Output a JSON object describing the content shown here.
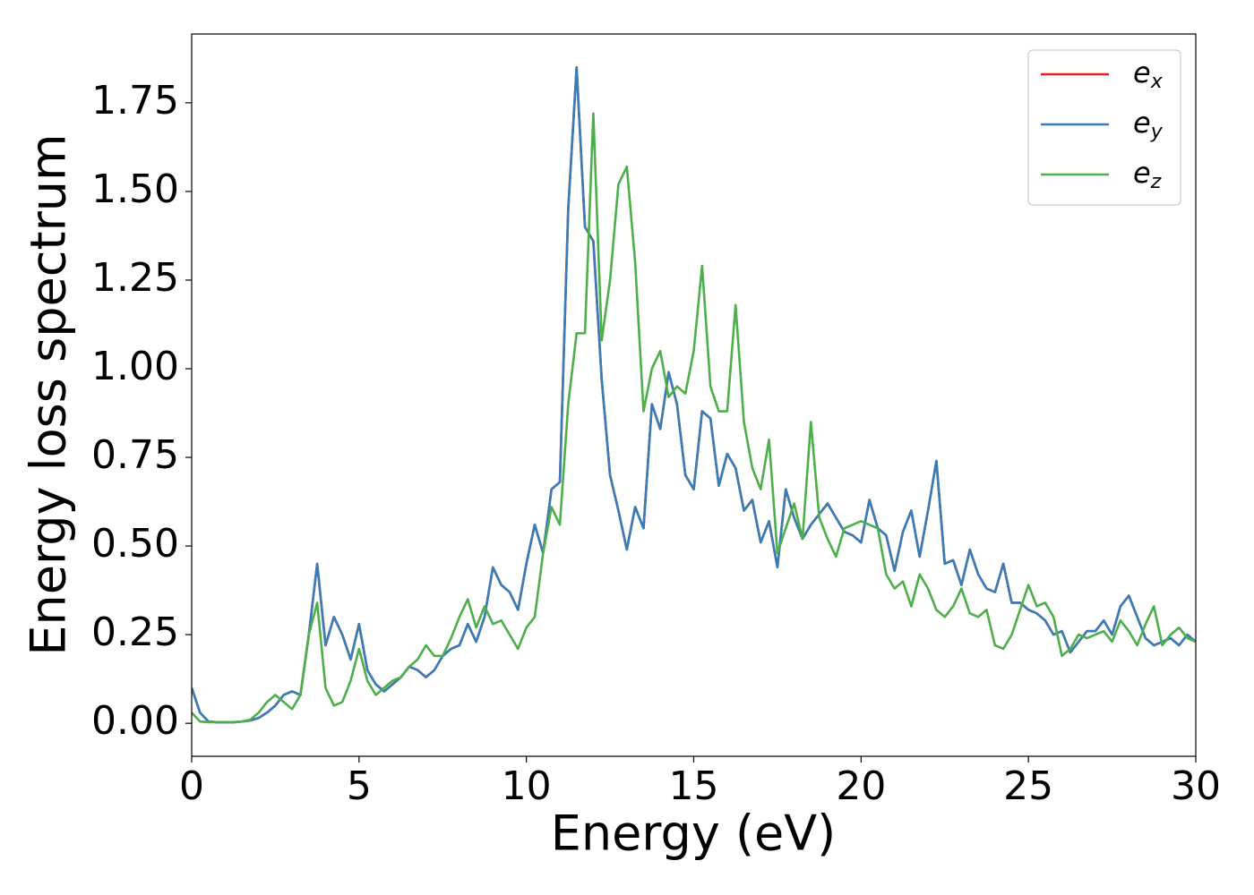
{
  "chart_data": {
    "type": "line",
    "xlabel": "Energy (eV)",
    "ylabel": "Energy loss spectrum",
    "x": [
      0,
      0.25,
      0.5,
      0.75,
      1,
      1.25,
      1.5,
      1.75,
      2,
      2.25,
      2.5,
      2.75,
      3,
      3.25,
      3.5,
      3.75,
      4,
      4.25,
      4.5,
      4.75,
      5,
      5.25,
      5.5,
      5.75,
      6,
      6.25,
      6.5,
      6.75,
      7,
      7.25,
      7.5,
      7.75,
      8,
      8.25,
      8.5,
      8.75,
      9,
      9.25,
      9.5,
      9.75,
      10,
      10.25,
      10.5,
      10.75,
      11,
      11.25,
      11.5,
      11.75,
      12,
      12.25,
      12.5,
      12.75,
      13,
      13.25,
      13.5,
      13.75,
      14,
      14.25,
      14.5,
      14.75,
      15,
      15.25,
      15.5,
      15.75,
      16,
      16.25,
      16.5,
      16.75,
      17,
      17.25,
      17.5,
      17.75,
      18,
      18.25,
      18.5,
      18.75,
      19,
      19.25,
      19.5,
      19.75,
      20,
      20.25,
      20.5,
      20.75,
      21,
      21.25,
      21.5,
      21.75,
      22,
      22.25,
      22.5,
      22.75,
      23,
      23.25,
      23.5,
      23.75,
      24,
      24.25,
      24.5,
      24.75,
      25,
      25.25,
      25.5,
      25.75,
      26,
      26.25,
      26.5,
      26.75,
      27,
      27.25,
      27.5,
      27.75,
      28,
      28.25,
      28.5,
      28.75,
      29,
      29.25,
      29.5,
      29.75,
      30
    ],
    "series": [
      {
        "name": "e_x",
        "color": "#e41a1c",
        "values": [
          0.1,
          0.03,
          0.005,
          0.003,
          0.003,
          0.003,
          0.005,
          0.008,
          0.015,
          0.03,
          0.05,
          0.08,
          0.09,
          0.08,
          0.25,
          0.45,
          0.22,
          0.3,
          0.25,
          0.18,
          0.28,
          0.15,
          0.11,
          0.09,
          0.11,
          0.13,
          0.16,
          0.15,
          0.13,
          0.15,
          0.19,
          0.21,
          0.22,
          0.28,
          0.23,
          0.3,
          0.44,
          0.39,
          0.37,
          0.32,
          0.45,
          0.56,
          0.48,
          0.66,
          0.68,
          1.45,
          1.85,
          1.4,
          1.36,
          0.97,
          0.7,
          0.6,
          0.49,
          0.61,
          0.55,
          0.9,
          0.83,
          0.99,
          0.9,
          0.7,
          0.66,
          0.88,
          0.86,
          0.67,
          0.76,
          0.72,
          0.6,
          0.63,
          0.51,
          0.57,
          0.44,
          0.66,
          0.58,
          0.52,
          0.56,
          0.59,
          0.62,
          0.58,
          0.54,
          0.53,
          0.51,
          0.63,
          0.55,
          0.53,
          0.43,
          0.54,
          0.6,
          0.47,
          0.6,
          0.74,
          0.45,
          0.46,
          0.39,
          0.49,
          0.42,
          0.38,
          0.37,
          0.45,
          0.34,
          0.34,
          0.32,
          0.31,
          0.29,
          0.25,
          0.26,
          0.2,
          0.23,
          0.26,
          0.26,
          0.29,
          0.25,
          0.33,
          0.36,
          0.3,
          0.24,
          0.22,
          0.23,
          0.24,
          0.22,
          0.25,
          0.23
        ]
      },
      {
        "name": "e_y",
        "color": "#377eb8",
        "values": [
          0.1,
          0.03,
          0.005,
          0.003,
          0.003,
          0.003,
          0.005,
          0.008,
          0.015,
          0.03,
          0.05,
          0.08,
          0.09,
          0.08,
          0.25,
          0.45,
          0.22,
          0.3,
          0.25,
          0.18,
          0.28,
          0.15,
          0.11,
          0.09,
          0.11,
          0.13,
          0.16,
          0.15,
          0.13,
          0.15,
          0.19,
          0.21,
          0.22,
          0.28,
          0.23,
          0.3,
          0.44,
          0.39,
          0.37,
          0.32,
          0.45,
          0.56,
          0.48,
          0.66,
          0.68,
          1.45,
          1.85,
          1.4,
          1.36,
          0.97,
          0.7,
          0.6,
          0.49,
          0.61,
          0.55,
          0.9,
          0.83,
          0.99,
          0.9,
          0.7,
          0.66,
          0.88,
          0.86,
          0.67,
          0.76,
          0.72,
          0.6,
          0.63,
          0.51,
          0.57,
          0.44,
          0.66,
          0.58,
          0.52,
          0.56,
          0.59,
          0.62,
          0.58,
          0.54,
          0.53,
          0.51,
          0.63,
          0.55,
          0.53,
          0.43,
          0.54,
          0.6,
          0.47,
          0.6,
          0.74,
          0.45,
          0.46,
          0.39,
          0.49,
          0.42,
          0.38,
          0.37,
          0.45,
          0.34,
          0.34,
          0.32,
          0.31,
          0.29,
          0.25,
          0.26,
          0.2,
          0.23,
          0.26,
          0.26,
          0.29,
          0.25,
          0.33,
          0.36,
          0.3,
          0.24,
          0.22,
          0.23,
          0.24,
          0.22,
          0.25,
          0.23
        ]
      },
      {
        "name": "e_z",
        "color": "#4daf4a",
        "values": [
          0.03,
          0.005,
          0.003,
          0.003,
          0.003,
          0.003,
          0.005,
          0.01,
          0.03,
          0.06,
          0.08,
          0.06,
          0.04,
          0.08,
          0.25,
          0.34,
          0.1,
          0.05,
          0.06,
          0.12,
          0.21,
          0.12,
          0.08,
          0.1,
          0.12,
          0.13,
          0.16,
          0.18,
          0.22,
          0.19,
          0.19,
          0.24,
          0.3,
          0.35,
          0.27,
          0.33,
          0.28,
          0.29,
          0.25,
          0.21,
          0.27,
          0.3,
          0.48,
          0.61,
          0.56,
          0.9,
          1.1,
          1.1,
          1.72,
          1.08,
          1.25,
          1.52,
          1.57,
          1.3,
          0.88,
          1.0,
          1.05,
          0.92,
          0.95,
          0.93,
          1.05,
          1.29,
          0.95,
          0.88,
          0.88,
          1.18,
          0.85,
          0.72,
          0.66,
          0.8,
          0.48,
          0.55,
          0.62,
          0.52,
          0.85,
          0.58,
          0.52,
          0.47,
          0.55,
          0.56,
          0.57,
          0.56,
          0.55,
          0.42,
          0.38,
          0.4,
          0.33,
          0.42,
          0.38,
          0.32,
          0.3,
          0.33,
          0.38,
          0.31,
          0.3,
          0.32,
          0.22,
          0.21,
          0.25,
          0.32,
          0.39,
          0.33,
          0.34,
          0.3,
          0.19,
          0.21,
          0.25,
          0.24,
          0.25,
          0.26,
          0.23,
          0.29,
          0.26,
          0.22,
          0.28,
          0.33,
          0.22,
          0.25,
          0.27,
          0.24,
          0.23
        ]
      }
    ],
    "xlim": [
      0,
      30
    ],
    "xticks": [
      0,
      5,
      10,
      15,
      20,
      25,
      30
    ],
    "ylim": [
      -0.093,
      1.944
    ],
    "yticks": [
      {
        "value": 0,
        "label": "0.00"
      },
      0.25,
      {
        "value": 0.5,
        "label": "0.50"
      },
      0.75,
      {
        "value": 1,
        "label": "1.00"
      },
      1.25,
      {
        "value": 1.5,
        "label": "1.50"
      },
      1.75
    ],
    "legend": "upper right"
  }
}
